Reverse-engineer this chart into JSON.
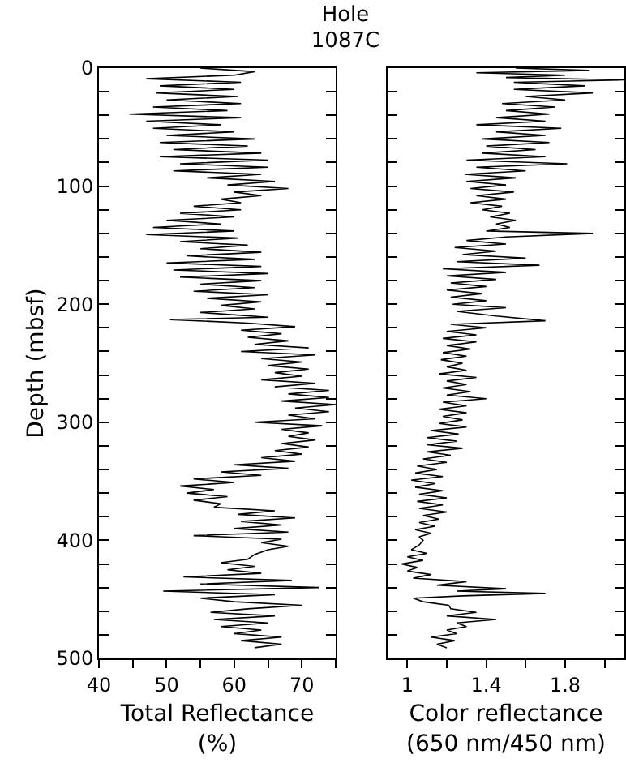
{
  "chart_data": [
    {
      "type": "line",
      "title": "Hole\n1087C",
      "orientation": "horizontal",
      "ylabel": "Depth (mbsf)",
      "xlabel": "Total Reflectance\n(%)",
      "xlim": [
        40,
        75
      ],
      "xticks": [
        40,
        {
          "value": 45,
          "label": null
        },
        50,
        {
          "value": 55,
          "label": null
        },
        60,
        {
          "value": 65,
          "label": null
        },
        70,
        {
          "value": 75,
          "label": null
        }
      ],
      "ylim": [
        500,
        0
      ],
      "yticks": [
        0,
        {
          "value": 20,
          "label": null
        },
        {
          "value": 40,
          "label": null
        },
        {
          "value": 60,
          "label": null
        },
        {
          "value": 80,
          "label": null
        },
        100,
        {
          "value": 120,
          "label": null
        },
        {
          "value": 140,
          "label": null
        },
        {
          "value": 160,
          "label": null
        },
        {
          "value": 180,
          "label": null
        },
        200,
        {
          "value": 220,
          "label": null
        },
        {
          "value": 240,
          "label": null
        },
        {
          "value": 260,
          "label": null
        },
        {
          "value": 280,
          "label": null
        },
        300,
        {
          "value": 320,
          "label": null
        },
        {
          "value": 340,
          "label": null
        },
        {
          "value": 360,
          "label": null
        },
        {
          "value": 380,
          "label": null
        },
        400,
        {
          "value": 420,
          "label": null
        },
        {
          "value": 440,
          "label": null
        },
        {
          "value": 460,
          "label": null
        },
        {
          "value": 480,
          "label": null
        },
        500
      ],
      "grid": false,
      "marker": "none",
      "line_style": "solid",
      "x": [
        0,
        3,
        6,
        9,
        12,
        15,
        18,
        21,
        24,
        27,
        30,
        33,
        36,
        39,
        42,
        45,
        48,
        51,
        54,
        57,
        60,
        63,
        66,
        69,
        72,
        75,
        78,
        81,
        84,
        87,
        90,
        93,
        96,
        99,
        102,
        105,
        108,
        111,
        114,
        117,
        120,
        123,
        126,
        129,
        132,
        135,
        138,
        141,
        144,
        147,
        150,
        153,
        156,
        159,
        162,
        165,
        168,
        171,
        174,
        177,
        180,
        183,
        186,
        189,
        192,
        195,
        198,
        201,
        204,
        207,
        211,
        213,
        216,
        219,
        222,
        225,
        228,
        231,
        234,
        237,
        240,
        243,
        246,
        249,
        252,
        255,
        258,
        261,
        264,
        267,
        270,
        273,
        276,
        279,
        282,
        285,
        288,
        291,
        294,
        297,
        300,
        303,
        306,
        309,
        312,
        315,
        318,
        321,
        324,
        327,
        330,
        333,
        336,
        339,
        342,
        345,
        348,
        351,
        354,
        357,
        360,
        363,
        366,
        369,
        372,
        375,
        378,
        381,
        384,
        387,
        390,
        393,
        396,
        399,
        402,
        405,
        408,
        412,
        416,
        419,
        422,
        425,
        428,
        431,
        434,
        437,
        440,
        443,
        446,
        449,
        452,
        455,
        458,
        461,
        464,
        467,
        470,
        473,
        476,
        479,
        482,
        485,
        488,
        491
      ],
      "series": [
        {
          "color": "#000000",
          "values": [
            55,
            63,
            60,
            47,
            61,
            49,
            60,
            48.5,
            60.5,
            50,
            61,
            48,
            59,
            44.5,
            61,
            47,
            58,
            48,
            60,
            50,
            63,
            49,
            62,
            51,
            64,
            49,
            65,
            52,
            65,
            51,
            64,
            56,
            66,
            59,
            68,
            60,
            64,
            58,
            61,
            54,
            61,
            52,
            60,
            50,
            58,
            48,
            60,
            47,
            60.5,
            52,
            62,
            55,
            64,
            53,
            63,
            50,
            64,
            51,
            65,
            52,
            64,
            55,
            63,
            54,
            65,
            56,
            64,
            58,
            63,
            55,
            65,
            50.5,
            62,
            69,
            61,
            67,
            62,
            68,
            63,
            71,
            61,
            72,
            64,
            70,
            65,
            71,
            66,
            70,
            64,
            72,
            66,
            74,
            68,
            74,
            67,
            75,
            69,
            74,
            68,
            72,
            63,
            73,
            67,
            71,
            68,
            72,
            67,
            71,
            66,
            70,
            64,
            69,
            60,
            68,
            58,
            64,
            54,
            60,
            52,
            57,
            53,
            59,
            54,
            58,
            57,
            66,
            60.5,
            69,
            61,
            67,
            60,
            68,
            54,
            67,
            64,
            68,
            65,
            63,
            62,
            58,
            63,
            59,
            64,
            52.5,
            68.5,
            55,
            72.5,
            49.5,
            66,
            55,
            60,
            70,
            62,
            56.5,
            66,
            57,
            65,
            58,
            64,
            60,
            67,
            61,
            67,
            63
          ]
        }
      ]
    },
    {
      "type": "line",
      "orientation": "horizontal",
      "xlabel": "Color reflectance\n(650 nm/450 nm)",
      "xlim": [
        0.9,
        2.1
      ],
      "xticks": [
        1,
        {
          "value": 1.2,
          "label": null
        },
        1.4,
        {
          "value": 1.6,
          "label": null
        },
        1.8,
        {
          "value": 2.0,
          "label": null
        }
      ],
      "ylim": [
        500,
        0
      ],
      "yticks": [
        0,
        {
          "value": 20,
          "label": null
        },
        {
          "value": 40,
          "label": null
        },
        {
          "value": 60,
          "label": null
        },
        {
          "value": 80,
          "label": null
        },
        100,
        {
          "value": 120,
          "label": null
        },
        {
          "value": 140,
          "label": null
        },
        {
          "value": 160,
          "label": null
        },
        {
          "value": 180,
          "label": null
        },
        200,
        {
          "value": 220,
          "label": null
        },
        {
          "value": 240,
          "label": null
        },
        {
          "value": 260,
          "label": null
        },
        {
          "value": 280,
          "label": null
        },
        300,
        {
          "value": 320,
          "label": null
        },
        {
          "value": 340,
          "label": null
        },
        {
          "value": 360,
          "label": null
        },
        {
          "value": 380,
          "label": null
        },
        400,
        {
          "value": 420,
          "label": null
        },
        {
          "value": 440,
          "label": null
        },
        {
          "value": 460,
          "label": null
        },
        {
          "value": 480,
          "label": null
        },
        500
      ],
      "tick_labels": "x",
      "grid": false,
      "marker": "none",
      "line_style": "solid",
      "x": [
        0,
        2,
        4,
        6,
        8,
        10,
        12,
        15,
        18,
        21,
        24,
        27,
        30,
        33,
        36,
        39,
        42,
        45,
        48,
        51,
        54,
        57,
        60,
        63,
        66,
        69,
        72,
        75,
        78,
        81,
        84,
        87,
        90,
        93,
        96,
        99,
        102,
        105,
        108,
        111,
        114,
        117,
        120,
        123,
        126,
        129,
        132,
        135,
        138,
        140,
        143,
        146,
        149,
        152,
        155,
        158,
        161,
        164,
        167,
        170,
        173,
        176,
        179,
        182,
        185,
        188,
        191,
        194,
        197,
        200,
        203,
        206,
        210,
        214,
        217,
        220,
        223,
        226,
        229,
        232,
        235,
        238,
        241,
        244,
        247,
        250,
        253,
        256,
        259,
        262,
        265,
        268,
        271,
        274,
        277,
        280,
        283,
        286,
        289,
        292,
        295,
        298,
        301,
        304,
        307,
        310,
        313,
        316,
        319,
        322,
        325,
        328,
        331,
        334,
        337,
        340,
        343,
        346,
        349,
        352,
        355,
        358,
        361,
        364,
        367,
        370,
        373,
        376,
        379,
        382,
        385,
        388,
        391,
        394,
        397,
        400,
        404,
        408,
        411,
        414,
        417,
        420,
        423,
        426,
        429,
        432,
        435,
        438,
        441,
        443,
        445,
        447,
        449,
        452,
        455,
        458,
        461,
        464,
        467,
        470,
        473,
        476,
        479,
        482,
        485,
        488,
        491
      ],
      "series": [
        {
          "color": "#000000",
          "values": [
            1.55,
            1.92,
            1.35,
            1.8,
            1.5,
            2.1,
            1.54,
            1.9,
            1.54,
            1.94,
            1.6,
            1.8,
            1.48,
            1.75,
            1.5,
            1.72,
            1.45,
            1.7,
            1.35,
            1.78,
            1.45,
            1.7,
            1.38,
            1.72,
            1.4,
            1.65,
            1.38,
            1.7,
            1.3,
            1.81,
            1.35,
            1.6,
            1.29,
            1.55,
            1.3,
            1.5,
            1.32,
            1.54,
            1.35,
            1.5,
            1.32,
            1.48,
            1.38,
            1.52,
            1.42,
            1.55,
            1.45,
            1.52,
            1.4,
            1.94,
            1.5,
            1.3,
            1.5,
            1.24,
            1.45,
            1.28,
            1.6,
            1.25,
            1.67,
            1.18,
            1.5,
            1.2,
            1.45,
            1.22,
            1.4,
            1.2,
            1.38,
            1.22,
            1.4,
            1.23,
            1.5,
            1.25,
            1.45,
            1.7,
            1.22,
            1.4,
            1.2,
            1.35,
            1.18,
            1.35,
            1.2,
            1.32,
            1.18,
            1.3,
            1.17,
            1.28,
            1.2,
            1.3,
            1.16,
            1.35,
            1.2,
            1.3,
            1.18,
            1.32,
            1.2,
            1.4,
            1.18,
            1.3,
            1.16,
            1.3,
            1.18,
            1.28,
            1.16,
            1.3,
            1.12,
            1.26,
            1.1,
            1.25,
            1.1,
            1.28,
            1.1,
            1.22,
            1.08,
            1.2,
            1.05,
            1.15,
            1.04,
            1.18,
            1.02,
            1.14,
            1.04,
            1.18,
            1.06,
            1.2,
            1.05,
            1.18,
            1.06,
            1.2,
            1.08,
            1.16,
            1.06,
            1.14,
            1.04,
            1.12,
            1.06,
            1.08,
            1.06,
            1.02,
            1.1,
            1.0,
            1.08,
            0.97,
            1.05,
            1.0,
            1.12,
            1.03,
            1.3,
            1.15,
            1.5,
            1.25,
            1.7,
            1.28,
            1.03,
            1.08,
            1.21,
            1.22,
            1.35,
            1.2,
            1.45,
            1.25,
            1.3,
            1.2,
            1.25,
            1.12,
            1.24,
            1.15,
            1.2
          ]
        }
      ]
    }
  ]
}
